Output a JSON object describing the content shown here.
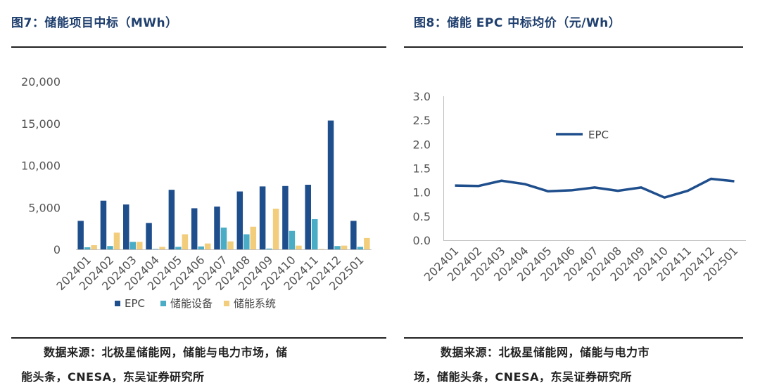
{
  "left": {
    "title": "图7：储能项目中标（MWh）",
    "source_line1": "数据来源：北极星储能网，储能与电力市场，储",
    "source_line2": "能头条，CNESA，东吴证券研究所"
  },
  "right": {
    "title": "图8：储能 EPC 中标均价（元/Wh）",
    "source_line1": "数据来源：北极星储能网，储能与电力市",
    "source_line2": "场，储能头条，CNESA，东吴证券研究所"
  },
  "chart_data": [
    {
      "type": "bar",
      "title": "图7：储能项目中标（MWh）",
      "categories": [
        "202401",
        "202402",
        "202403",
        "202404",
        "202405",
        "202406",
        "202407",
        "202408",
        "202409",
        "202410",
        "202411",
        "202412",
        "202501"
      ],
      "series": [
        {
          "name": "EPC",
          "color": "#1f4e8c",
          "values": [
            3400,
            5800,
            5350,
            3150,
            7100,
            4900,
            5100,
            6900,
            7500,
            7550,
            7700,
            15350,
            3400
          ]
        },
        {
          "name": "储能设备",
          "color": "#4bacc6",
          "values": [
            250,
            400,
            900,
            50,
            300,
            350,
            2600,
            1800,
            100,
            2200,
            3600,
            400,
            300
          ]
        },
        {
          "name": "储能系统",
          "color": "#f2cd7c",
          "values": [
            500,
            2000,
            900,
            300,
            1800,
            700,
            950,
            2700,
            4850,
            450,
            50,
            450,
            1350
          ]
        }
      ],
      "ylim": [
        0,
        20000
      ],
      "yticks": [
        "0",
        "5,000",
        "10,000",
        "15,000",
        "20,000"
      ],
      "legend": "bottom"
    },
    {
      "type": "line",
      "title": "图8：储能 EPC 中标均价（元/Wh）",
      "categories": [
        "202401",
        "202402",
        "202403",
        "202404",
        "202405",
        "202406",
        "202407",
        "202408",
        "202409",
        "202410",
        "202411",
        "202412",
        "202501"
      ],
      "series": [
        {
          "name": "EPC",
          "color": "#1f4e8c",
          "values": [
            1.14,
            1.13,
            1.24,
            1.17,
            1.02,
            1.04,
            1.1,
            1.03,
            1.1,
            0.89,
            1.03,
            1.28,
            1.23
          ]
        }
      ],
      "ylim": [
        0,
        3.0
      ],
      "yticks": [
        "0.0",
        "0.5",
        "1.0",
        "1.5",
        "2.0",
        "2.5",
        "3.0"
      ],
      "legend": "inside-top"
    }
  ]
}
